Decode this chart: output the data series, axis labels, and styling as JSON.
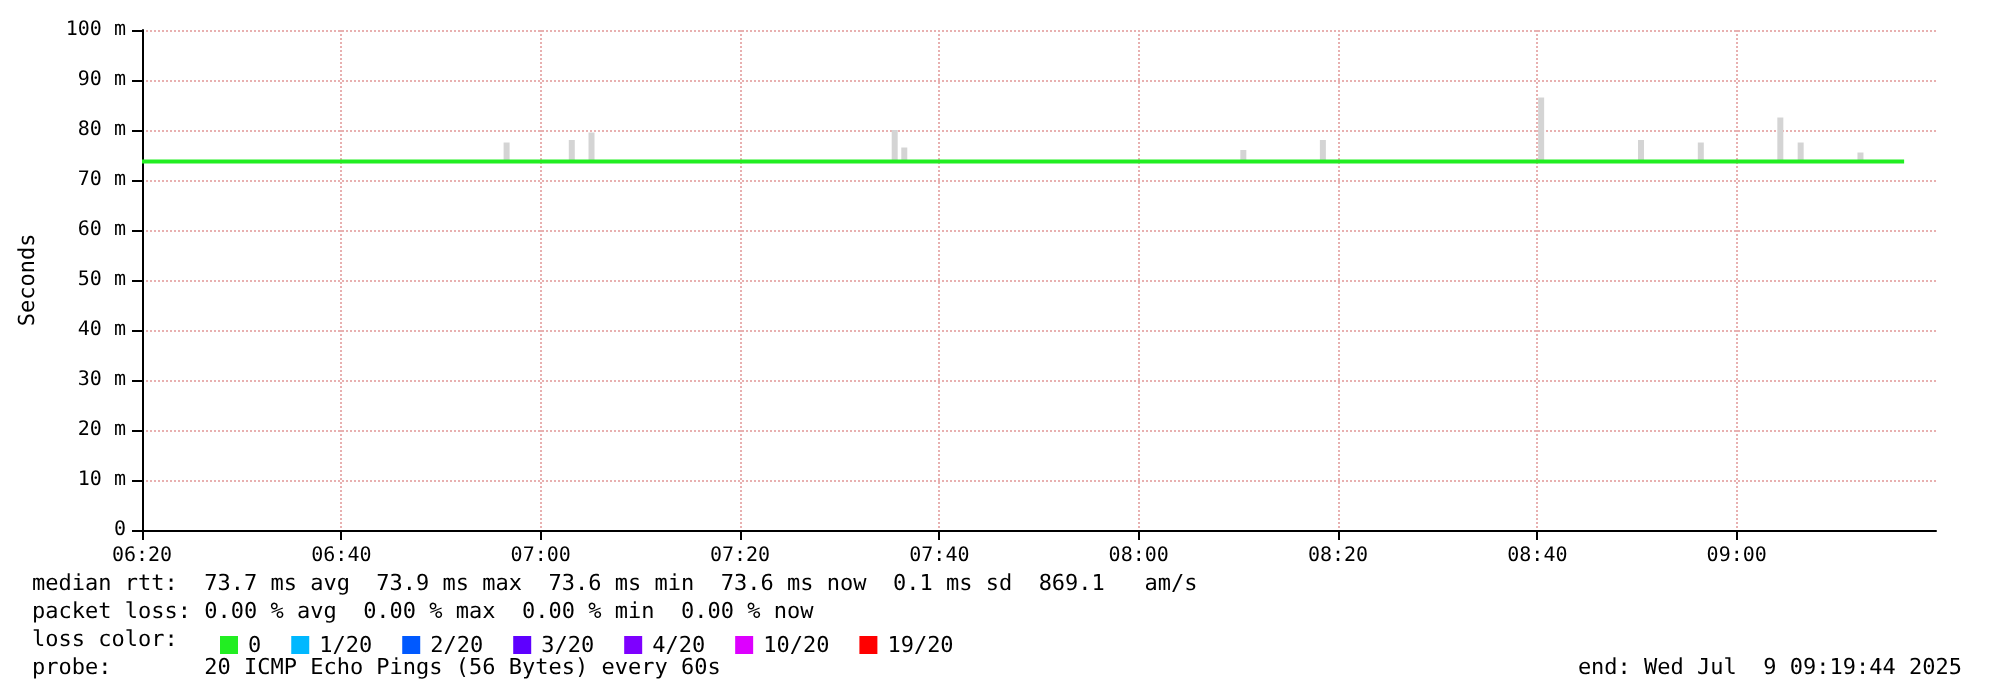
{
  "chart_data": {
    "type": "line",
    "ylabel": "Seconds",
    "xlim": [
      6.3333,
      9.3333
    ],
    "xticks": [
      {
        "value": 6.3333,
        "label": "06:20"
      },
      {
        "value": 6.6667,
        "label": "06:40"
      },
      {
        "value": 7,
        "label": "07:00"
      },
      {
        "value": 7.3333,
        "label": "07:20"
      },
      {
        "value": 7.6667,
        "label": "07:40"
      },
      {
        "value": 8,
        "label": "08:00"
      },
      {
        "value": 8.3333,
        "label": "08:20"
      },
      {
        "value": 8.6667,
        "label": "08:40"
      },
      {
        "value": 9,
        "label": "09:00"
      }
    ],
    "ylim": [
      0,
      100
    ],
    "yticks": [
      0,
      {
        "value": 10,
        "label": "10 m"
      },
      {
        "value": 20,
        "label": "20 m"
      },
      {
        "value": 30,
        "label": "30 m"
      },
      {
        "value": 40,
        "label": "40 m"
      },
      {
        "value": 50,
        "label": "50 m"
      },
      {
        "value": 60,
        "label": "60 m"
      },
      {
        "value": 70,
        "label": "70 m"
      },
      {
        "value": 80,
        "label": "80 m"
      },
      {
        "value": 90,
        "label": "90 m"
      },
      {
        "value": 100,
        "label": "100 m"
      }
    ],
    "grid": true,
    "legend": "bottom left",
    "legend_title": "loss color:",
    "marker": "none",
    "series": [
      {
        "type": "bar",
        "color": "#d4d4d4",
        "x": [
          6.943,
          7.052,
          7.085,
          7.592,
          7.608,
          8.175,
          8.308,
          8.673,
          8.84,
          8.94,
          9.073,
          9.107,
          9.207
        ],
        "base": [
          73.5,
          73.5,
          73.5,
          73.5,
          73.5,
          73.5,
          73.5,
          73.5,
          73.5,
          73.5,
          73.5,
          73.5,
          73.5
        ],
        "values": [
          4,
          4.5,
          6,
          6.5,
          3,
          2.5,
          4.5,
          13,
          4.5,
          4,
          9,
          4,
          2
        ]
      },
      {
        "name": "0",
        "color": "#22ee22",
        "x": [
          6.3333,
          9.28
        ],
        "values": [
          73.7,
          73.7
        ]
      },
      {
        "name": "1/20",
        "color": "#00b8ff"
      },
      {
        "name": "2/20",
        "color": "#0059ff"
      },
      {
        "name": "3/20",
        "color": "#5e00ff"
      },
      {
        "name": "4/20",
        "color": "#7e00ff"
      },
      {
        "name": "10/20",
        "color": "#dd00ff"
      },
      {
        "name": "19/20",
        "color": "#ff0000"
      }
    ],
    "annotations": [
      "median rtt:  73.7 ms avg  73.9 ms max  73.6 ms min  73.6 ms now  0.1 ms sd  869.1   am/s",
      "packet loss: 0.00 % avg  0.00 % max  0.00 % min  0.00 % now",
      "probe:       20 ICMP Echo Pings (56 Bytes) every 60s",
      "end: Wed Jul  9 09:19:44 2025"
    ]
  }
}
